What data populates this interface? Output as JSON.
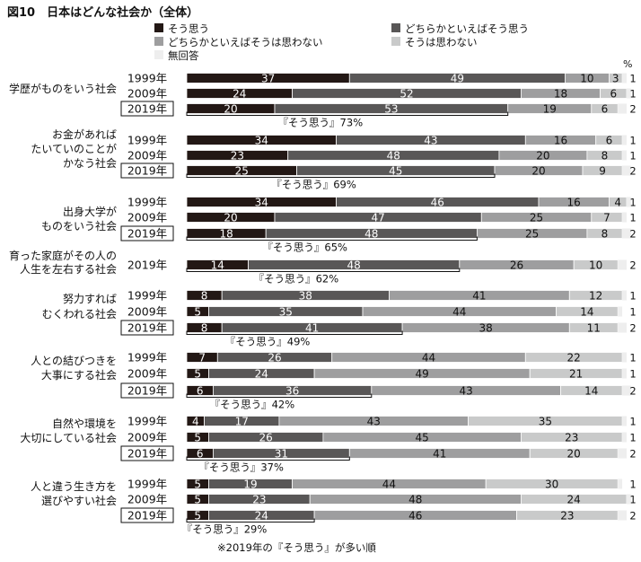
{
  "chart_data": {
    "type": "bar",
    "orientation": "horizontal",
    "stacked": true,
    "percent_scale": true,
    "title": "図10　日本はどんな社会か（全体）",
    "unit_label": "%",
    "legend_placement": "top",
    "series": [
      {
        "name": "そう思う",
        "color": "#231815"
      },
      {
        "name": "どちらかといえばそう思う",
        "color": "#595757"
      },
      {
        "name": "どちらかといえばそうは思わない",
        "color": "#9e9e9f"
      },
      {
        "name": "そうは思わない",
        "color": "#c9caca"
      },
      {
        "name": "無回答",
        "color": "#eeeeee"
      }
    ],
    "groups": [
      {
        "category": "学歴がものをいう社会",
        "summary": "『そう思う』73%",
        "rows": [
          {
            "year": "1999年",
            "values": [
              37,
              49,
              10,
              3,
              1
            ],
            "labels": [
              "37",
              "49",
              "10",
              "3",
              "1"
            ]
          },
          {
            "year": "2009年",
            "values": [
              24,
              52,
              18,
              6,
              1
            ],
            "labels": [
              "24",
              "52",
              "18",
              "6",
              "1"
            ]
          },
          {
            "year": "2019年",
            "values": [
              20,
              53,
              19,
              6,
              2
            ],
            "labels": [
              "20",
              "53",
              "19",
              "6",
              "2"
            ]
          }
        ]
      },
      {
        "category": "お金があればたいていのことがかなう社会",
        "summary": "『そう思う』69%",
        "rows": [
          {
            "year": "1999年",
            "values": [
              34,
              43,
              16,
              6,
              1
            ],
            "labels": [
              "34",
              "43",
              "16",
              "6",
              "1"
            ]
          },
          {
            "year": "2009年",
            "values": [
              23,
              48,
              20,
              8,
              1
            ],
            "labels": [
              "23",
              "48",
              "20",
              "8",
              "1"
            ]
          },
          {
            "year": "2019年",
            "values": [
              25,
              45,
              20,
              9,
              2
            ],
            "labels": [
              "25",
              "45",
              "20",
              "9",
              "2"
            ]
          }
        ]
      },
      {
        "category": "出身大学がものをいう社会",
        "summary": "『そう思う』65%",
        "rows": [
          {
            "year": "1999年",
            "values": [
              34,
              46,
              16,
              4,
              1
            ],
            "labels": [
              "34",
              "46",
              "16",
              "4",
              "1"
            ]
          },
          {
            "year": "2009年",
            "values": [
              20,
              47,
              25,
              7,
              1
            ],
            "labels": [
              "20",
              "47",
              "25",
              "7",
              "1"
            ]
          },
          {
            "year": "2019年",
            "values": [
              18,
              48,
              25,
              8,
              2
            ],
            "labels": [
              "18",
              "48",
              "25",
              "8",
              "2"
            ]
          }
        ]
      },
      {
        "category": "育った家庭がその人の人生を左右する社会",
        "summary": "『そう思う』62%",
        "rows": [
          {
            "year": "2019年",
            "values": [
              14,
              48,
              26,
              10,
              2
            ],
            "labels": [
              "14",
              "48",
              "26",
              "10",
              "2"
            ]
          }
        ]
      },
      {
        "category": "努力すればむくわれる社会",
        "summary": "『そう思う』49%",
        "rows": [
          {
            "year": "1999年",
            "values": [
              8,
              38,
              41,
              12,
              1
            ],
            "labels": [
              "8",
              "38",
              "41",
              "12",
              "1"
            ]
          },
          {
            "year": "2009年",
            "values": [
              5,
              35,
              44,
              14,
              1
            ],
            "labels": [
              "5",
              "35",
              "44",
              "14",
              "1"
            ]
          },
          {
            "year": "2019年",
            "values": [
              8,
              41,
              38,
              11,
              2
            ],
            "labels": [
              "8",
              "41",
              "38",
              "11",
              "2"
            ]
          }
        ]
      },
      {
        "category": "人との結びつきを大事にする社会",
        "summary": "『そう思う』42%",
        "rows": [
          {
            "year": "1999年",
            "values": [
              7,
              26,
              44,
              22,
              1
            ],
            "labels": [
              "7",
              "26",
              "44",
              "22",
              "1"
            ]
          },
          {
            "year": "2009年",
            "values": [
              5,
              24,
              49,
              21,
              1
            ],
            "labels": [
              "5",
              "24",
              "49",
              "21",
              "1"
            ]
          },
          {
            "year": "2019年",
            "values": [
              6,
              36,
              43,
              14,
              2
            ],
            "labels": [
              "6",
              "36",
              "43",
              "14",
              "2"
            ]
          }
        ]
      },
      {
        "category": "自然や環境を大切にしている社会",
        "summary": "『そう思う』37%",
        "rows": [
          {
            "year": "1999年",
            "values": [
              4,
              17,
              43,
              35,
              1
            ],
            "labels": [
              "4",
              "17",
              "43",
              "35",
              "1"
            ]
          },
          {
            "year": "2009年",
            "values": [
              5,
              26,
              45,
              23,
              1
            ],
            "labels": [
              "5",
              "26",
              "45",
              "23",
              "1"
            ]
          },
          {
            "year": "2019年",
            "values": [
              6,
              31,
              41,
              20,
              2
            ],
            "labels": [
              "6",
              "31",
              "41",
              "20",
              "2"
            ]
          }
        ]
      },
      {
        "category": "人と違う生き方を選びやすい社会",
        "summary": "『そう思う』29%",
        "rows": [
          {
            "year": "1999年",
            "values": [
              5,
              19,
              44,
              30,
              1
            ],
            "labels": [
              "5",
              "19",
              "44",
              "30",
              "1"
            ]
          },
          {
            "year": "2009年",
            "values": [
              5,
              23,
              48,
              24,
              1
            ],
            "labels": [
              "5",
              "23",
              "48",
              "24",
              "1"
            ]
          },
          {
            "year": "2019年",
            "values": [
              5,
              24,
              46,
              23,
              2
            ],
            "labels": [
              "5",
              "24",
              "46",
              "23",
              "2"
            ]
          }
        ]
      }
    ],
    "footnote": "※2019年の『そう思う』が多い順"
  }
}
